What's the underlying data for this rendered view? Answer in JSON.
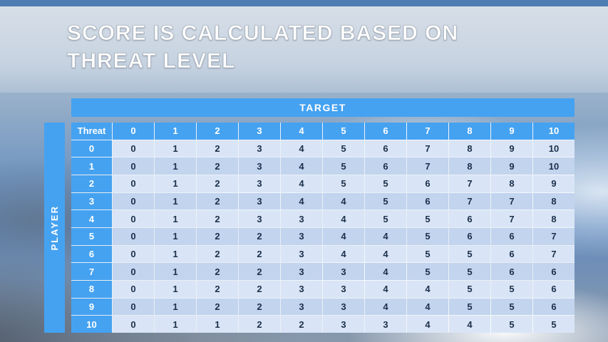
{
  "slide": {
    "title_line1": "SCORE IS CALCULATED BASED ON",
    "title_line2": "THREAT LEVEL"
  },
  "table": {
    "target_label": "TARGET",
    "player_label": "PLAYER",
    "corner_label": "Threat",
    "column_headers": [
      "0",
      "1",
      "2",
      "3",
      "4",
      "5",
      "6",
      "7",
      "8",
      "9",
      "10"
    ],
    "rows": [
      {
        "threat": "0",
        "values": [
          0,
          1,
          2,
          3,
          4,
          5,
          6,
          7,
          8,
          9,
          10
        ]
      },
      {
        "threat": "1",
        "values": [
          0,
          1,
          2,
          3,
          4,
          5,
          6,
          7,
          8,
          9,
          10
        ]
      },
      {
        "threat": "2",
        "values": [
          0,
          1,
          2,
          3,
          4,
          5,
          5,
          6,
          7,
          8,
          9
        ]
      },
      {
        "threat": "3",
        "values": [
          0,
          1,
          2,
          3,
          4,
          4,
          5,
          6,
          7,
          7,
          8
        ]
      },
      {
        "threat": "4",
        "values": [
          0,
          1,
          2,
          3,
          3,
          4,
          5,
          5,
          6,
          7,
          8
        ]
      },
      {
        "threat": "5",
        "values": [
          0,
          1,
          2,
          2,
          3,
          4,
          4,
          5,
          6,
          6,
          7
        ]
      },
      {
        "threat": "6",
        "values": [
          0,
          1,
          2,
          2,
          3,
          4,
          4,
          5,
          5,
          6,
          7
        ]
      },
      {
        "threat": "7",
        "values": [
          0,
          1,
          2,
          2,
          3,
          3,
          4,
          5,
          5,
          6,
          6
        ]
      },
      {
        "threat": "8",
        "values": [
          0,
          1,
          2,
          2,
          3,
          3,
          4,
          4,
          5,
          5,
          6
        ]
      },
      {
        "threat": "9",
        "values": [
          0,
          1,
          2,
          2,
          3,
          3,
          4,
          4,
          5,
          5,
          6
        ]
      },
      {
        "threat": "10",
        "values": [
          0,
          1,
          1,
          2,
          2,
          3,
          3,
          4,
          4,
          5,
          5
        ]
      }
    ]
  },
  "colors": {
    "accent_blue": "#45A2F1",
    "top_strip_blue": "#4D7DB3",
    "row_light": "#D9E5F6",
    "row_dark": "#C2D4EE",
    "cell_text": "#1C2F4A",
    "header_text": "#FFFFFF"
  }
}
